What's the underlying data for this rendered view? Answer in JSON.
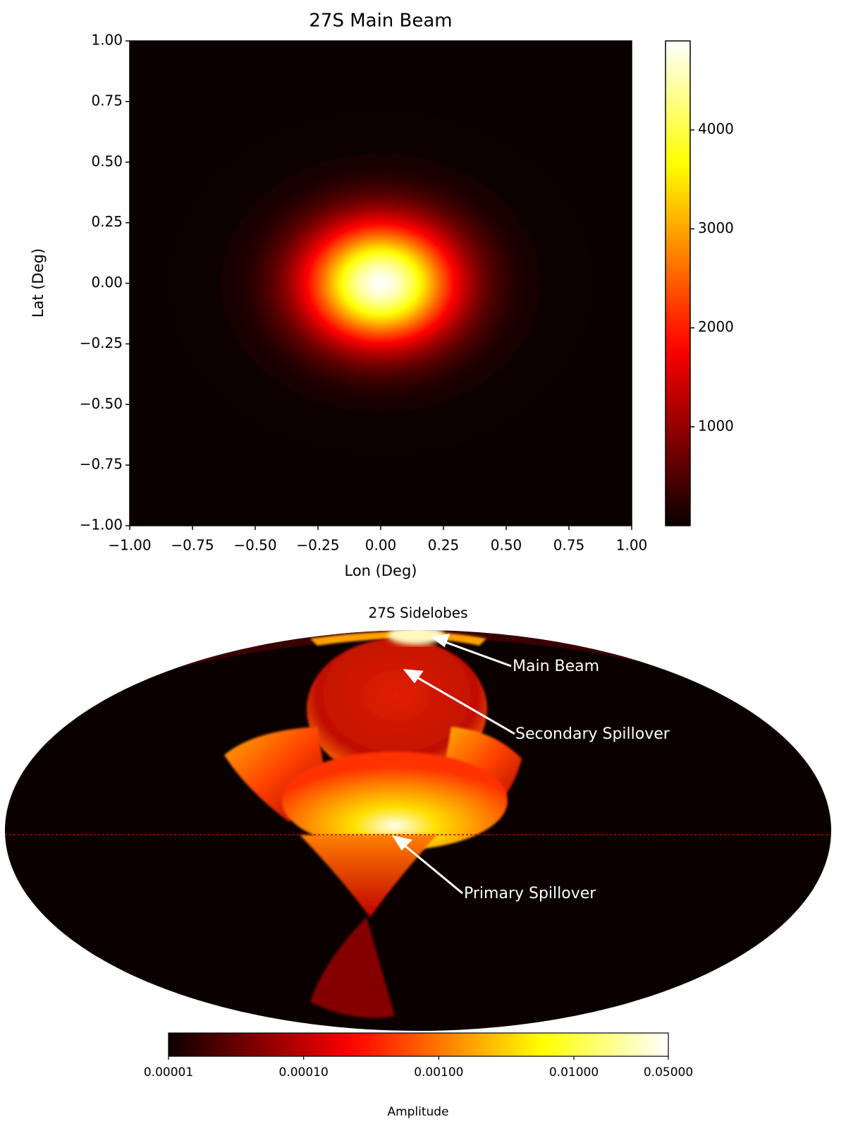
{
  "chart_data": [
    {
      "type": "heatmap",
      "title": "27S Main Beam",
      "x_label": "Lon (Deg)",
      "y_label": "Lat (Deg)",
      "colormap": "hot",
      "xlim": [
        -1,
        1
      ],
      "ylim": [
        -1,
        1
      ],
      "xticks": [
        {
          "value": -1,
          "label": "−1.00"
        },
        {
          "value": -0.75,
          "label": "−0.75"
        },
        {
          "value": -0.5,
          "label": "−0.50"
        },
        {
          "value": -0.25,
          "label": "−0.25"
        },
        {
          "value": 0,
          "label": "0.00"
        },
        {
          "value": 0.25,
          "label": "0.25"
        },
        {
          "value": 0.5,
          "label": "0.50"
        },
        {
          "value": 0.75,
          "label": "0.75"
        },
        {
          "value": 1,
          "label": "1.00"
        }
      ],
      "yticks": [
        {
          "value": -1,
          "label": "−1.00"
        },
        {
          "value": -0.75,
          "label": "−0.75"
        },
        {
          "value": -0.5,
          "label": "−0.50"
        },
        {
          "value": -0.25,
          "label": "−0.25"
        },
        {
          "value": 0,
          "label": "0.00"
        },
        {
          "value": 0.25,
          "label": "0.25"
        },
        {
          "value": 0.5,
          "label": "0.50"
        },
        {
          "value": 0.75,
          "label": "0.75"
        },
        {
          "value": 1,
          "label": "1.00"
        }
      ],
      "beam": {
        "peak": 4870,
        "x0": 0,
        "y0": 0,
        "fwhm_x": 0.5,
        "fwhm_y": 0.42
      },
      "colorbar": {
        "lim": [
          0,
          4900
        ],
        "ticks": [
          1000,
          2000,
          3000,
          4000
        ]
      }
    },
    {
      "type": "mollweide",
      "title": "27S Sidelobes",
      "colormap": "hot",
      "annotations": [
        "Main Beam",
        "Secondary Spillover",
        "Primary Spillover"
      ],
      "colorbar": {
        "label": "Amplitude",
        "log": true,
        "lim": [
          1e-05,
          0.05
        ],
        "ticks": [
          {
            "value": 1e-05,
            "label": "0.00001"
          },
          {
            "value": 0.0001,
            "label": "0.00010"
          },
          {
            "value": 0.001,
            "label": "0.00100"
          },
          {
            "value": 0.01,
            "label": "0.01000"
          },
          {
            "value": 0.05,
            "label": "0.05000"
          }
        ]
      }
    }
  ]
}
